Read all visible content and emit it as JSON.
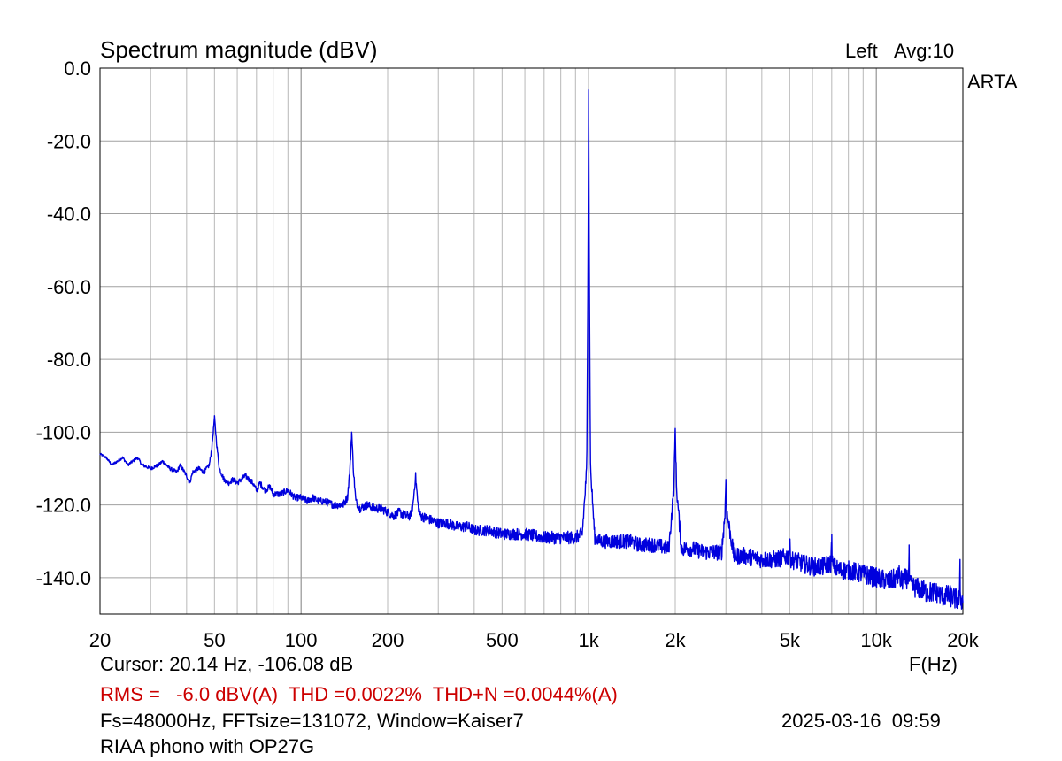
{
  "chart_data": {
    "type": "line",
    "title": "Spectrum magnitude (dBV)",
    "channel": "Left",
    "averaging": "Avg:10",
    "brand": "ARTA",
    "xlabel": "F(Hz)",
    "x_scale": "log",
    "xlim": [
      20,
      20000
    ],
    "ylim": [
      -150,
      0
    ],
    "grid": true,
    "x_ticks": [
      {
        "value": 20,
        "label": "20"
      },
      {
        "value": 50,
        "label": "50"
      },
      {
        "value": 100,
        "label": "100"
      },
      {
        "value": 200,
        "label": "200"
      },
      {
        "value": 500,
        "label": "500"
      },
      {
        "value": 1000,
        "label": "1k"
      },
      {
        "value": 2000,
        "label": "2k"
      },
      {
        "value": 5000,
        "label": "5k"
      },
      {
        "value": 10000,
        "label": "10k"
      },
      {
        "value": 20000,
        "label": "20k"
      }
    ],
    "y_ticks": [
      {
        "value": 0,
        "label": "0.0"
      },
      {
        "value": -20,
        "label": "-20.0"
      },
      {
        "value": -40,
        "label": "-40.0"
      },
      {
        "value": -60,
        "label": "-60.0"
      },
      {
        "value": -80,
        "label": "-80.0"
      },
      {
        "value": -100,
        "label": "-100.0"
      },
      {
        "value": -120,
        "label": "-120.0"
      },
      {
        "value": -140,
        "label": "-140.0"
      }
    ],
    "series": [
      {
        "color": "#0000dd",
        "points": [
          [
            20,
            -106
          ],
          [
            21,
            -107
          ],
          [
            22,
            -109
          ],
          [
            23,
            -108
          ],
          [
            24,
            -107
          ],
          [
            25,
            -109
          ],
          [
            26,
            -108
          ],
          [
            27,
            -107
          ],
          [
            28,
            -109
          ],
          [
            30,
            -110
          ],
          [
            32,
            -109
          ],
          [
            33,
            -108
          ],
          [
            35,
            -110
          ],
          [
            37,
            -111
          ],
          [
            38,
            -109
          ],
          [
            40,
            -112
          ],
          [
            41,
            -114
          ],
          [
            42,
            -111
          ],
          [
            44,
            -110
          ],
          [
            46,
            -111
          ],
          [
            48,
            -109
          ],
          [
            49,
            -104
          ],
          [
            50,
            -96
          ],
          [
            51,
            -104
          ],
          [
            52,
            -110
          ],
          [
            54,
            -113
          ],
          [
            56,
            -114
          ],
          [
            58,
            -113
          ],
          [
            60,
            -114
          ],
          [
            62,
            -113
          ],
          [
            64,
            -112
          ],
          [
            66,
            -113
          ],
          [
            68,
            -114
          ],
          [
            70,
            -116
          ],
          [
            72,
            -114
          ],
          [
            75,
            -116
          ],
          [
            78,
            -115
          ],
          [
            80,
            -117
          ],
          [
            85,
            -117
          ],
          [
            90,
            -116
          ],
          [
            95,
            -118
          ],
          [
            100,
            -118
          ],
          [
            105,
            -119
          ],
          [
            110,
            -118
          ],
          [
            115,
            -119
          ],
          [
            120,
            -119
          ],
          [
            130,
            -120
          ],
          [
            140,
            -120
          ],
          [
            145,
            -118
          ],
          [
            148,
            -110
          ],
          [
            150,
            -100
          ],
          [
            152,
            -110
          ],
          [
            155,
            -119
          ],
          [
            160,
            -121
          ],
          [
            170,
            -120
          ],
          [
            180,
            -121
          ],
          [
            190,
            -121
          ],
          [
            200,
            -122
          ],
          [
            210,
            -123
          ],
          [
            220,
            -122
          ],
          [
            230,
            -123
          ],
          [
            240,
            -123
          ],
          [
            245,
            -120
          ],
          [
            250,
            -112
          ],
          [
            255,
            -120
          ],
          [
            260,
            -123
          ],
          [
            280,
            -124
          ],
          [
            300,
            -125
          ],
          [
            320,
            -125
          ],
          [
            350,
            -126
          ],
          [
            380,
            -126
          ],
          [
            400,
            -127
          ],
          [
            450,
            -127
          ],
          [
            500,
            -128
          ],
          [
            550,
            -128
          ],
          [
            600,
            -128
          ],
          [
            700,
            -129
          ],
          [
            800,
            -129
          ],
          [
            900,
            -129
          ],
          [
            950,
            -128
          ],
          [
            985,
            -110
          ],
          [
            995,
            -53
          ],
          [
            1000,
            -6
          ],
          [
            1005,
            -53
          ],
          [
            1015,
            -110
          ],
          [
            1050,
            -129
          ],
          [
            1100,
            -130
          ],
          [
            1200,
            -130
          ],
          [
            1300,
            -130
          ],
          [
            1400,
            -130
          ],
          [
            1500,
            -131
          ],
          [
            1700,
            -131
          ],
          [
            1900,
            -132
          ],
          [
            1980,
            -115
          ],
          [
            2000,
            -99
          ],
          [
            2020,
            -115
          ],
          [
            2100,
            -132
          ],
          [
            2300,
            -132
          ],
          [
            2500,
            -133
          ],
          [
            2700,
            -133
          ],
          [
            2900,
            -133
          ],
          [
            2980,
            -122
          ],
          [
            3000,
            -113
          ],
          [
            3020,
            -122
          ],
          [
            3200,
            -134
          ],
          [
            3500,
            -134
          ],
          [
            4000,
            -135
          ],
          [
            4500,
            -135
          ],
          [
            4950,
            -134
          ],
          [
            5000,
            -131
          ],
          [
            5050,
            -135
          ],
          [
            5500,
            -136
          ],
          [
            6000,
            -137
          ],
          [
            6500,
            -137
          ],
          [
            6950,
            -136
          ],
          [
            7000,
            -130
          ],
          [
            7050,
            -137
          ],
          [
            7500,
            -138
          ],
          [
            8000,
            -138
          ],
          [
            9000,
            -139
          ],
          [
            10000,
            -140
          ],
          [
            11000,
            -141
          ],
          [
            11950,
            -140
          ],
          [
            12000,
            -136
          ],
          [
            12050,
            -141
          ],
          [
            12950,
            -140
          ],
          [
            13000,
            -133
          ],
          [
            13050,
            -142
          ],
          [
            14000,
            -143
          ],
          [
            15000,
            -144
          ],
          [
            16000,
            -144
          ],
          [
            17000,
            -145
          ],
          [
            18000,
            -145
          ],
          [
            19000,
            -146
          ],
          [
            19500,
            -146
          ],
          [
            19550,
            -135
          ],
          [
            19600,
            -146
          ],
          [
            20000,
            -146
          ]
        ]
      }
    ]
  },
  "readouts": {
    "cursor": "Cursor: 20.14 Hz, -106.08 dB",
    "measurements": "RMS =   -6.0 dBV(A)  THD =0.0022%  THD+N =0.0044%(A)",
    "fft_settings": "Fs=48000Hz, FFTsize=131072, Window=Kaiser7",
    "timestamp": "2025-03-16  09:59",
    "caption": "RIAA phono with OP27G"
  }
}
